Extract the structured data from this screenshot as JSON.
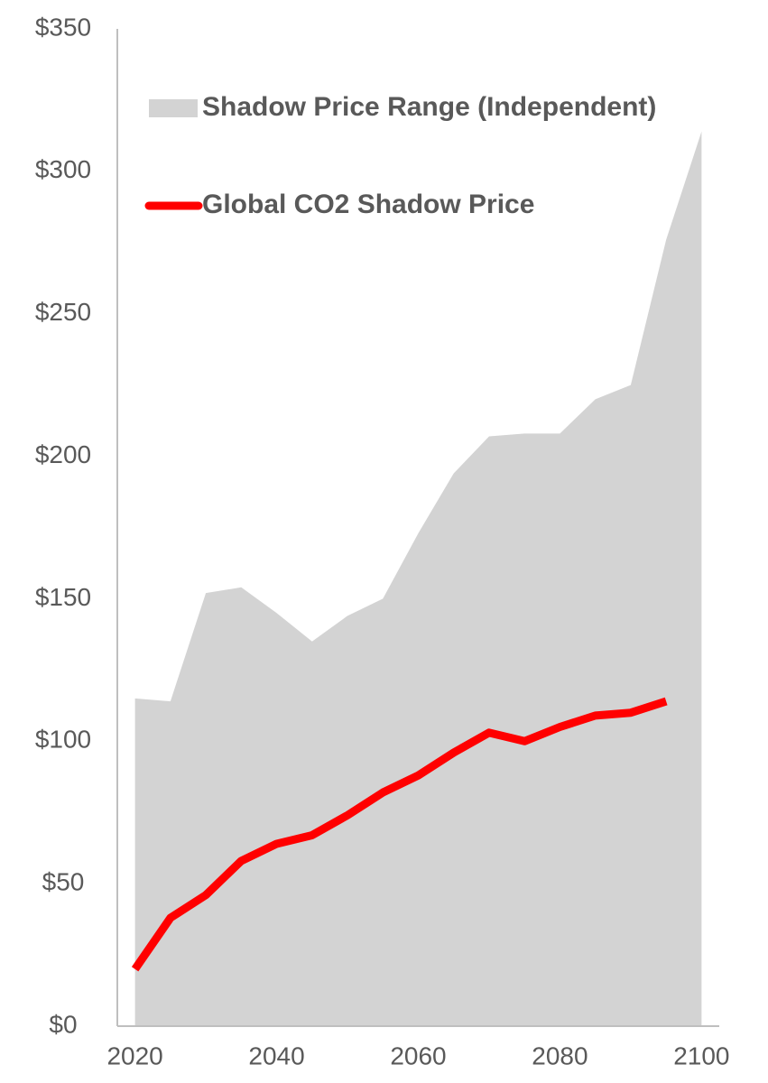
{
  "chart_data": {
    "type": "line",
    "x": [
      2020,
      2025,
      2030,
      2035,
      2040,
      2045,
      2050,
      2055,
      2060,
      2065,
      2070,
      2075,
      2080,
      2085,
      2090,
      2095,
      2100
    ],
    "series": [
      {
        "name": "Shadow Price Range (Independent)",
        "type": "area",
        "color": "#d3d3d3",
        "values": [
          115,
          114,
          152,
          154,
          145,
          135,
          144,
          150,
          173,
          194,
          207,
          208,
          208,
          220,
          225,
          276,
          314
        ]
      },
      {
        "name": "Global CO2 Shadow Price",
        "type": "line",
        "color": "#ff0000",
        "values": [
          20,
          38,
          46,
          58,
          64,
          67,
          74,
          82,
          88,
          96,
          103,
          100,
          105,
          109,
          110,
          114,
          null
        ]
      }
    ],
    "xlim": [
      2017.5,
      2102.5
    ],
    "xticks": [
      2020,
      2040,
      2060,
      2080,
      2100
    ],
    "ylim": [
      0,
      350
    ],
    "yticks": [
      {
        "value": 0,
        "label": "$0"
      },
      {
        "value": 50,
        "label": "$50"
      },
      {
        "value": 100,
        "label": "$100"
      },
      {
        "value": 150,
        "label": "$150"
      },
      {
        "value": 200,
        "label": "$200"
      },
      {
        "value": 250,
        "label": "$250"
      },
      {
        "value": 300,
        "label": "$300"
      },
      {
        "value": 350,
        "label": "$350"
      }
    ],
    "legend": "top-left"
  }
}
